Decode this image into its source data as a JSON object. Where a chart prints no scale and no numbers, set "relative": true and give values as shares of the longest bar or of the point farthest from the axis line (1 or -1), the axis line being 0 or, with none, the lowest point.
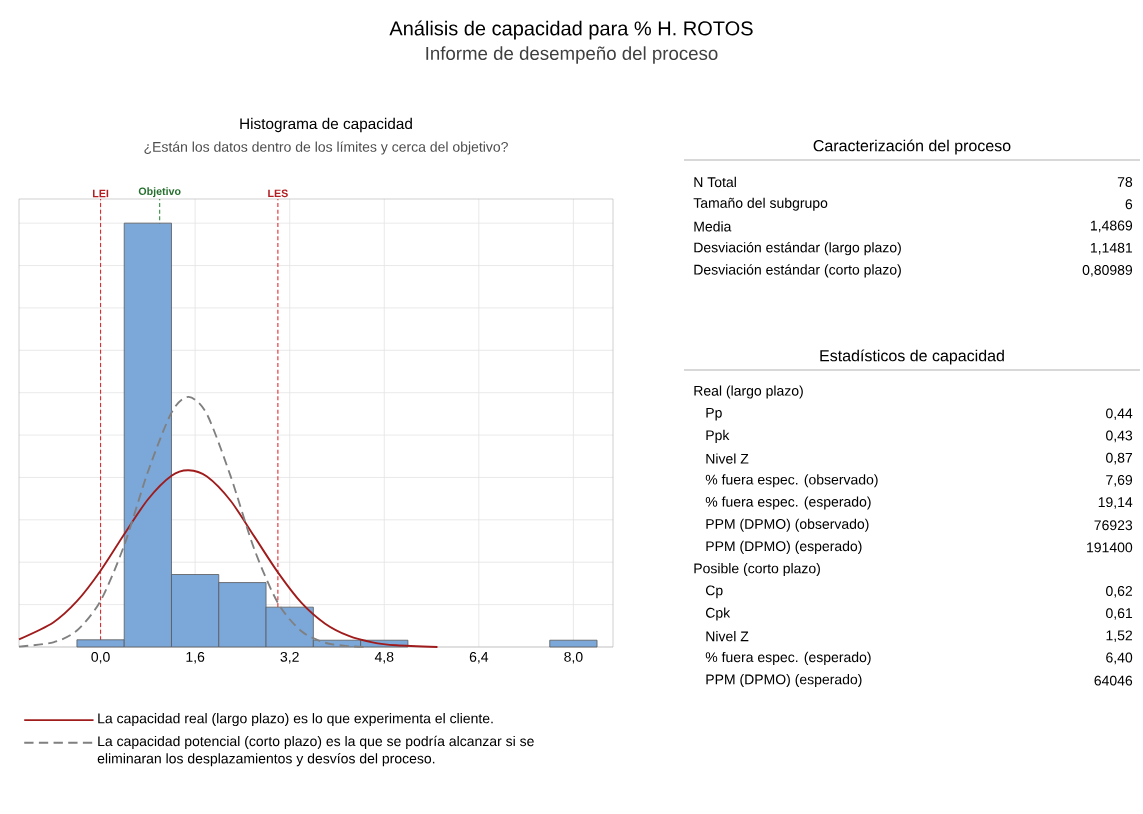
{
  "chart_data": [
    {
      "type": "other",
      "title": "Análisis de capacidad para % H. ROTOS",
      "subtitle": "Informe de desempeño del proceso"
    },
    {
      "type": "histogram",
      "title": "Histograma de capacidad",
      "subtitle": "¿Están los datos dentro de los límites y cerca del objetivo?",
      "relative": true,
      "bins": [
        -0.4,
        0.4,
        1.2,
        2.0,
        2.8,
        3.6,
        4.4,
        5.2,
        6.0,
        6.8,
        7.6,
        8.4
      ],
      "values": [
        0.017,
        1.0,
        0.171,
        0.152,
        0.094,
        0.016,
        0.016,
        0,
        0,
        0,
        0.016
      ],
      "color": "#7ba7d9",
      "series": [
        {
          "type": "line",
          "name": "La capacidad real (largo plazo) es lo que experimenta el cliente.",
          "color": "#a01c1c",
          "line_style": "solid",
          "x": [
            -1.38,
            -0.8,
            -0.4,
            0,
            0.4,
            0.8,
            1.2,
            1.49,
            1.8,
            2.2,
            2.6,
            3.0,
            3.4,
            3.8,
            4.2,
            4.6,
            5.0,
            5.7
          ],
          "values": [
            0.018,
            0.058,
            0.108,
            0.18,
            0.266,
            0.348,
            0.404,
            0.417,
            0.402,
            0.345,
            0.261,
            0.176,
            0.104,
            0.055,
            0.026,
            0.011,
            0.004,
            0
          ]
        },
        {
          "type": "line",
          "name": "La capacidad potencial (corto plazo) es la que se podría alcanzar si se eliminaran los desplazamientos y desvíos del proceso.",
          "color": "#808080",
          "line_style": "dashed",
          "x": [
            -1.38,
            -0.8,
            -0.4,
            0,
            0.4,
            0.8,
            1.2,
            1.49,
            1.8,
            2.2,
            2.6,
            3.0,
            3.4,
            3.8,
            4.2,
            4.5
          ],
          "values": [
            0.001,
            0.011,
            0.039,
            0.109,
            0.24,
            0.413,
            0.553,
            0.59,
            0.549,
            0.403,
            0.231,
            0.104,
            0.037,
            0.01,
            0.002,
            0
          ]
        }
      ],
      "xlim": [
        -1.38,
        8.67
      ],
      "xticks": [
        {
          "value": 0,
          "label": "0,0"
        },
        {
          "value": 1.6,
          "label": "1,6"
        },
        {
          "value": 3.2,
          "label": "3,2"
        },
        {
          "value": 4.8,
          "label": "4,8"
        },
        {
          "value": 6.4,
          "label": "6,4"
        },
        {
          "value": 8.0,
          "label": "8,0"
        }
      ],
      "ref_lines": [
        {
          "axis": "x",
          "value": 0,
          "label": "LEI",
          "color": "#e0262b",
          "line_style": "dashed"
        },
        {
          "axis": "x",
          "value": 1.0,
          "label": "Objetivo",
          "color": "#2e8b3a",
          "line_style": "dashed"
        },
        {
          "axis": "x",
          "value": 3.0,
          "label": "LES",
          "color": "#e0262b",
          "line_style": "dashed"
        }
      ],
      "grid": true,
      "legend": "bottom"
    },
    {
      "type": "other",
      "title": "Caracterización del proceso",
      "categories": [
        "N Total",
        "Tamaño del subgrupo",
        "Media",
        "Desviación estándar (largo plazo)",
        "Desviación estándar (corto plazo)"
      ],
      "value_labels": [
        "78",
        "6",
        "1,4869",
        "1,1481",
        "0,80989"
      ]
    },
    {
      "type": "other",
      "title": "Estadísticos de capacidad",
      "categories": [
        "Real (largo plazo)",
        "Pp",
        "Ppk",
        "Nivel Z",
        "% fuera espec. (observado)",
        "% fuera espec. (esperado)",
        "PPM (DPMO) (observado)",
        "PPM (DPMO) (esperado)",
        "Posible (corto plazo)",
        "Cp",
        "Cpk",
        "Nivel Z",
        "% fuera espec. (esperado)",
        "PPM (DPMO) (esperado)"
      ],
      "value_labels": [
        null,
        "0,44",
        "0,43",
        "0,87",
        "7,69",
        "19,14",
        "76923",
        "191400",
        null,
        "0,62",
        "0,61",
        "1,52",
        "6,40",
        "64046"
      ]
    }
  ]
}
